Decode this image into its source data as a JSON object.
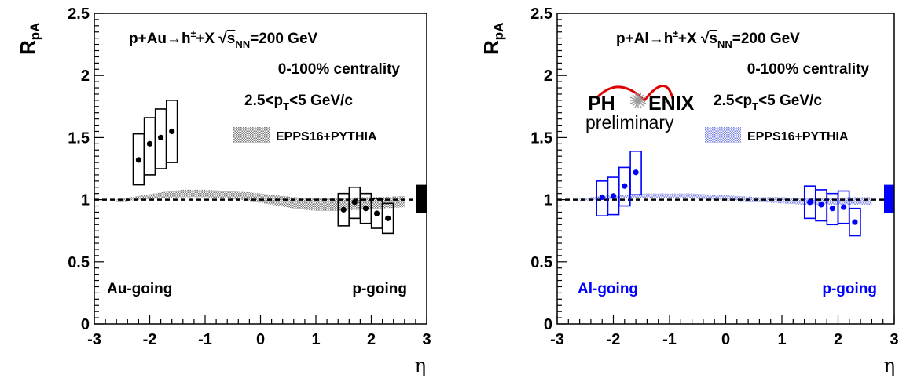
{
  "chart_data": [
    {
      "type": "scatter",
      "panel": "pAu",
      "xlabel": "η",
      "ylabel": "R",
      "ylabel_sub": "pA",
      "xlim": [
        -3,
        3
      ],
      "ylim": [
        0,
        2.5
      ],
      "x_ticks": [
        "-3",
        "-2",
        "-1",
        "0",
        "1",
        "2",
        "3"
      ],
      "y_ticks": [
        "0",
        "0.5",
        "1",
        "1.5",
        "2",
        "2.5"
      ],
      "color": "#000000",
      "reference_line": 1,
      "norm_box": {
        "low": 0.89,
        "high": 1.12
      },
      "annotations": {
        "system": {
          "a": "p+Au",
          "b": "h",
          "sup": "±",
          "c": "+X ",
          "d": "s",
          "sub": "NN",
          "e": "=200 GeV"
        },
        "centrality": "0-100% centrality",
        "pt_range": {
          "a": "2.5<p",
          "sub": "T",
          "b": "<5 GeV/c"
        },
        "left_label": "Au-going",
        "right_label": "p-going"
      },
      "legend": "EPPS16+PYTHIA",
      "points": [
        {
          "x": -2.2,
          "y": 1.32,
          "sys_low": 1.12,
          "sys_high": 1.53
        },
        {
          "x": -2.0,
          "y": 1.45,
          "sys_low": 1.2,
          "sys_high": 1.66
        },
        {
          "x": -1.8,
          "y": 1.5,
          "sys_low": 1.25,
          "sys_high": 1.73
        },
        {
          "x": -1.6,
          "y": 1.55,
          "sys_low": 1.3,
          "sys_high": 1.8
        },
        {
          "x": 1.5,
          "y": 0.92,
          "sys_low": 0.79,
          "sys_high": 1.05
        },
        {
          "x": 1.7,
          "y": 0.98,
          "sys_low": 0.85,
          "sys_high": 1.1
        },
        {
          "x": 1.9,
          "y": 0.93,
          "sys_low": 0.81,
          "sys_high": 1.05
        },
        {
          "x": 2.1,
          "y": 0.89,
          "sys_low": 0.77,
          "sys_high": 1.01
        },
        {
          "x": 2.3,
          "y": 0.85,
          "sys_low": 0.73,
          "sys_high": 0.97
        }
      ],
      "band": {
        "x": [
          -2.6,
          -2.2,
          -1.8,
          -1.4,
          -1.0,
          -0.6,
          -0.2,
          0.2,
          0.6,
          1.0,
          1.4,
          1.8,
          2.2,
          2.6
        ],
        "low": [
          0.98,
          1.0,
          1.01,
          1.02,
          1.02,
          1.01,
          0.99,
          0.96,
          0.93,
          0.91,
          0.91,
          0.92,
          0.93,
          0.94
        ],
        "high": [
          1.0,
          1.03,
          1.06,
          1.08,
          1.08,
          1.07,
          1.06,
          1.04,
          1.02,
          1.01,
          1.01,
          1.02,
          1.02,
          1.03
        ]
      }
    },
    {
      "type": "scatter",
      "panel": "pAl",
      "xlabel": "η",
      "ylabel": "R",
      "ylabel_sub": "pA",
      "xlim": [
        -3,
        3
      ],
      "ylim": [
        0,
        2.5
      ],
      "x_ticks": [
        "-3",
        "-2",
        "-1",
        "0",
        "1",
        "2",
        "3"
      ],
      "y_ticks": [
        "0",
        "0.5",
        "1",
        "1.5",
        "2",
        "2.5"
      ],
      "color": "#0000ff",
      "reference_line": 1,
      "norm_box": {
        "low": 0.89,
        "high": 1.12
      },
      "annotations": {
        "system": {
          "a": "p+Al",
          "b": "h",
          "sup": "±",
          "c": "+X ",
          "d": "s",
          "sub": "NN",
          "e": "=200 GeV"
        },
        "centrality": "0-100% centrality",
        "pt_range": {
          "a": "2.5<p",
          "sub": "T",
          "b": "<5 GeV/c"
        },
        "left_label": "Al-going",
        "right_label": "p-going",
        "logo_left": "PH",
        "logo_right": "ENIX",
        "logo_sub": "preliminary"
      },
      "legend": "EPPS16+PYTHIA",
      "points": [
        {
          "x": -2.2,
          "y": 1.02,
          "sys_low": 0.87,
          "sys_high": 1.15
        },
        {
          "x": -2.0,
          "y": 1.03,
          "sys_low": 0.88,
          "sys_high": 1.18
        },
        {
          "x": -1.8,
          "y": 1.11,
          "sys_low": 0.95,
          "sys_high": 1.26
        },
        {
          "x": -1.6,
          "y": 1.22,
          "sys_low": 1.04,
          "sys_high": 1.39
        },
        {
          "x": 1.5,
          "y": 0.98,
          "sys_low": 0.85,
          "sys_high": 1.11
        },
        {
          "x": 1.7,
          "y": 0.96,
          "sys_low": 0.83,
          "sys_high": 1.08
        },
        {
          "x": 1.9,
          "y": 0.93,
          "sys_low": 0.8,
          "sys_high": 1.05
        },
        {
          "x": 2.1,
          "y": 0.94,
          "sys_low": 0.81,
          "sys_high": 1.07
        },
        {
          "x": 2.3,
          "y": 0.82,
          "sys_low": 0.71,
          "sys_high": 0.93
        }
      ],
      "band": {
        "x": [
          -2.6,
          -2.2,
          -1.8,
          -1.4,
          -1.0,
          -0.6,
          -0.2,
          0.2,
          0.6,
          1.0,
          1.4,
          1.8,
          2.2,
          2.6
        ],
        "low": [
          0.99,
          1.0,
          1.01,
          1.01,
          1.01,
          1.01,
          1.0,
          0.99,
          0.98,
          0.97,
          0.96,
          0.96,
          0.96,
          0.96
        ],
        "high": [
          1.01,
          1.03,
          1.04,
          1.05,
          1.05,
          1.05,
          1.04,
          1.03,
          1.02,
          1.02,
          1.01,
          1.01,
          1.02,
          1.02
        ]
      }
    }
  ]
}
